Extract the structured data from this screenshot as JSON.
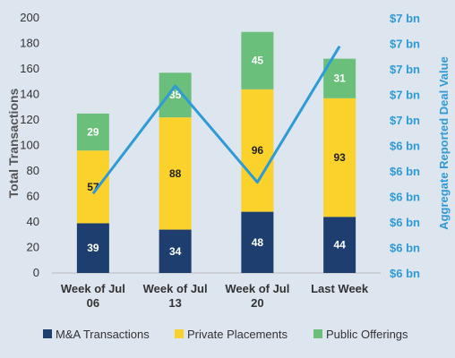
{
  "chart_data": {
    "type": "bar",
    "stacked": true,
    "categories": [
      [
        "Week of Jul",
        "06"
      ],
      [
        "Week of Jul",
        "13"
      ],
      [
        "Week of Jul",
        "20"
      ],
      [
        "Last Week"
      ]
    ],
    "series": [
      {
        "name": "M&A Transactions",
        "values": [
          39,
          34,
          48,
          44
        ],
        "color": "#1d3e6e",
        "label_color": "#ffffff"
      },
      {
        "name": "Private Placements",
        "values": [
          57,
          88,
          96,
          93
        ],
        "color": "#fad22b",
        "label_color": "#222222"
      },
      {
        "name": "Public Offerings",
        "values": [
          29,
          35,
          45,
          31
        ],
        "color": "#6abf7b",
        "label_color": "#ffffff"
      }
    ],
    "line_series": {
      "name": "Aggregate Reported Deal Value",
      "values": [
        6.2,
        7.15,
        6.3,
        7.5
      ],
      "color": "#2e9ad6"
    },
    "ylabel": "Total Transactions",
    "ylim": [
      0,
      200
    ],
    "yticks": [
      0,
      20,
      40,
      60,
      80,
      100,
      120,
      140,
      160,
      180,
      200
    ],
    "y2label": "Aggregate Reported Deal Value",
    "y2lim": [
      5.5,
      7.75
    ],
    "y2tick_labels": [
      "$6 bn",
      "$6 bn",
      "$6 bn",
      "$6 bn",
      "$6 bn",
      "$6 bn",
      "$7 bn",
      "$7 bn",
      "$7 bn",
      "$7 bn",
      "$7 bn"
    ],
    "legend_position": "bottom",
    "grid": false
  }
}
